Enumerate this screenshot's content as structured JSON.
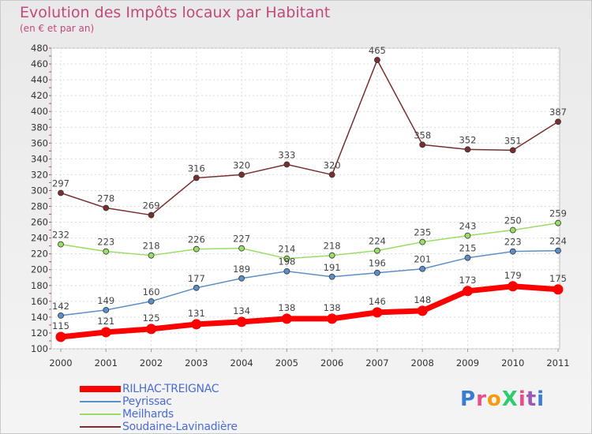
{
  "header": {
    "title": "Evolution des Impôts locaux par Habitant",
    "subtitle": "(en € et par an)"
  },
  "logo": {
    "text": "ProXiti"
  },
  "chart_data": {
    "type": "line",
    "title": "Evolution des Impôts locaux par Habitant",
    "subtitle": "(en € et par an)",
    "xlabel": "",
    "ylabel": "",
    "x": [
      "2000",
      "2001",
      "2002",
      "2003",
      "2004",
      "2005",
      "2006",
      "2007",
      "2008",
      "2009",
      "2010",
      "2011"
    ],
    "ylim": [
      100,
      480
    ],
    "yticks": [
      100,
      120,
      140,
      160,
      180,
      200,
      220,
      240,
      260,
      280,
      300,
      320,
      340,
      360,
      380,
      400,
      420,
      440,
      460,
      480
    ],
    "grid": true,
    "legend_position": "bottom-left",
    "series": [
      {
        "name": "RILHAC-TREIGNAC",
        "color": "#ff0000",
        "values": [
          115,
          121,
          125,
          131,
          134,
          138,
          138,
          146,
          148,
          173,
          179,
          175
        ]
      },
      {
        "name": "Peyrissac",
        "color": "#5b8fc9",
        "values": [
          142,
          149,
          160,
          177,
          189,
          198,
          191,
          196,
          201,
          215,
          223,
          224
        ]
      },
      {
        "name": "Meilhards",
        "color": "#99dd66",
        "values": [
          232,
          223,
          218,
          226,
          227,
          214,
          218,
          224,
          235,
          243,
          250,
          259
        ]
      },
      {
        "name": "Soudaine-Lavinadière",
        "color": "#7a2e2e",
        "values": [
          297,
          278,
          269,
          316,
          320,
          333,
          320,
          465,
          358,
          352,
          351,
          387
        ]
      }
    ]
  }
}
